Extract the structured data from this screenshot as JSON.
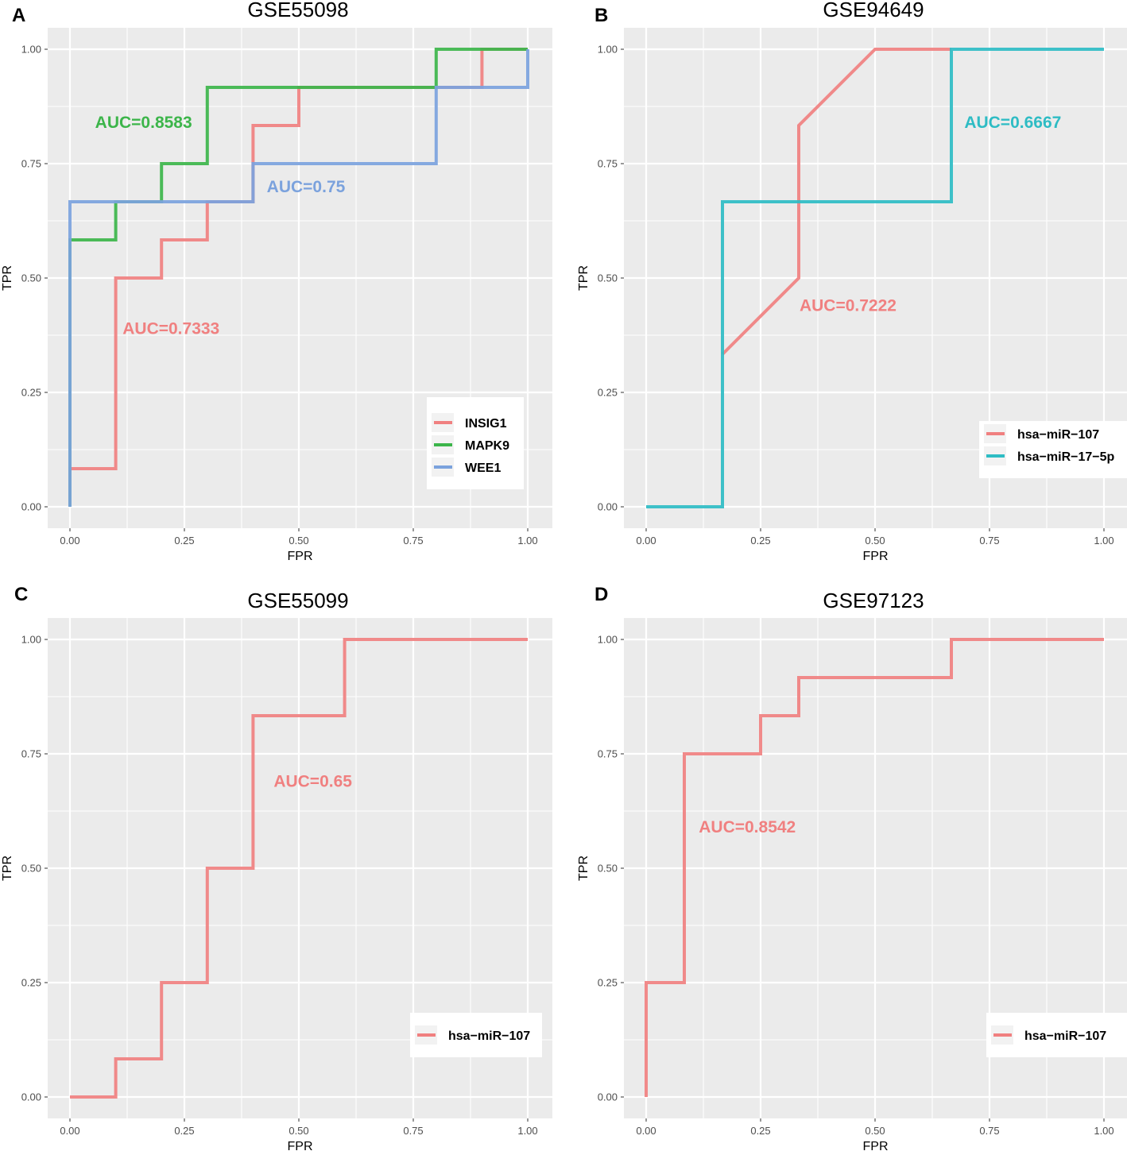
{
  "chart_data": [
    {
      "panel": "A",
      "type": "line",
      "title": "GSE55098",
      "xlabel": "FPR",
      "ylabel": "TPR",
      "xlim": [
        0,
        1
      ],
      "ylim": [
        0,
        1
      ],
      "xticks": [
        "0.00",
        "0.25",
        "0.50",
        "0.75",
        "1.00"
      ],
      "yticks": [
        "0.00",
        "0.25",
        "0.50",
        "0.75",
        "1.00"
      ],
      "legend": "bottom-right",
      "series": [
        {
          "name": "INSIG1",
          "color": "#f08080",
          "auc_label": "AUC=0.7333",
          "auc_pos": [
            0.115,
            0.39
          ],
          "points": [
            [
              0,
              0
            ],
            [
              0,
              0.0833
            ],
            [
              0.1,
              0.0833
            ],
            [
              0.1,
              0.5
            ],
            [
              0.2,
              0.5
            ],
            [
              0.2,
              0.5833
            ],
            [
              0.3,
              0.5833
            ],
            [
              0.3,
              0.6667
            ],
            [
              0.4,
              0.6667
            ],
            [
              0.4,
              0.8333
            ],
            [
              0.5,
              0.8333
            ],
            [
              0.5,
              0.9167
            ],
            [
              0.9,
              0.9167
            ],
            [
              0.9,
              1
            ],
            [
              1,
              1
            ]
          ]
        },
        {
          "name": "MAPK9",
          "color": "#3cb54a",
          "auc_label": "AUC=0.8583",
          "auc_pos": [
            0.055,
            0.84
          ],
          "points": [
            [
              0,
              0
            ],
            [
              0,
              0.5833
            ],
            [
              0.1,
              0.5833
            ],
            [
              0.1,
              0.6667
            ],
            [
              0.2,
              0.6667
            ],
            [
              0.2,
              0.75
            ],
            [
              0.3,
              0.75
            ],
            [
              0.3,
              0.9167
            ],
            [
              0.8,
              0.9167
            ],
            [
              0.8,
              1
            ],
            [
              1,
              1
            ]
          ]
        },
        {
          "name": "WEE1",
          "color": "#7ba2dd",
          "auc_label": "AUC=0.75",
          "auc_pos": [
            0.43,
            0.7
          ],
          "points": [
            [
              0,
              0
            ],
            [
              0,
              0.6667
            ],
            [
              0.4,
              0.6667
            ],
            [
              0.4,
              0.75
            ],
            [
              0.8,
              0.75
            ],
            [
              0.8,
              0.9167
            ],
            [
              1,
              0.9167
            ],
            [
              1,
              1
            ]
          ]
        }
      ]
    },
    {
      "panel": "B",
      "type": "line",
      "title": "GSE94649",
      "xlabel": "FPR",
      "ylabel": "TPR",
      "xlim": [
        0,
        1
      ],
      "ylim": [
        0,
        1
      ],
      "xticks": [
        "0.00",
        "0.25",
        "0.50",
        "0.75",
        "1.00"
      ],
      "yticks": [
        "0.00",
        "0.25",
        "0.50",
        "0.75",
        "1.00"
      ],
      "legend": "bottom-right",
      "series": [
        {
          "name": "hsa−miR−107",
          "color": "#f08080",
          "auc_label": "AUC=0.7222",
          "auc_pos": [
            0.335,
            0.44
          ],
          "points": [
            [
              0.1667,
              0.3333
            ],
            [
              0.3333,
              0.5
            ],
            [
              0.3333,
              0.8333
            ],
            [
              0.5,
              1
            ],
            [
              0.6667,
              1
            ]
          ]
        },
        {
          "name": "hsa−miR−17−5p",
          "color": "#2ebcc4",
          "auc_label": "AUC=0.6667",
          "auc_pos": [
            0.695,
            0.84
          ],
          "points": [
            [
              0,
              0
            ],
            [
              0.1667,
              0
            ],
            [
              0.1667,
              0.6667
            ],
            [
              0.6667,
              0.6667
            ],
            [
              0.6667,
              1
            ],
            [
              1,
              1
            ]
          ]
        }
      ]
    },
    {
      "panel": "C",
      "type": "line",
      "title": "GSE55099",
      "xlabel": "FPR",
      "ylabel": "TPR",
      "xlim": [
        0,
        1
      ],
      "ylim": [
        0,
        1
      ],
      "xticks": [
        "0.00",
        "0.25",
        "0.50",
        "0.75",
        "1.00"
      ],
      "yticks": [
        "0.00",
        "0.25",
        "0.50",
        "0.75",
        "1.00"
      ],
      "legend": "bottom-right",
      "series": [
        {
          "name": "hsa−miR−107",
          "color": "#f08080",
          "auc_label": "AUC=0.65",
          "auc_pos": [
            0.445,
            0.69
          ],
          "points": [
            [
              0,
              0
            ],
            [
              0.1,
              0
            ],
            [
              0.1,
              0.0833
            ],
            [
              0.2,
              0.0833
            ],
            [
              0.2,
              0.25
            ],
            [
              0.3,
              0.25
            ],
            [
              0.3,
              0.5
            ],
            [
              0.4,
              0.5
            ],
            [
              0.4,
              0.8333
            ],
            [
              0.6,
              0.8333
            ],
            [
              0.6,
              1
            ],
            [
              1,
              1
            ]
          ]
        }
      ]
    },
    {
      "panel": "D",
      "type": "line",
      "title": "GSE97123",
      "xlabel": "FPR",
      "ylabel": "TPR",
      "xlim": [
        0,
        1
      ],
      "ylim": [
        0,
        1
      ],
      "xticks": [
        "0.00",
        "0.25",
        "0.50",
        "0.75",
        "1.00"
      ],
      "yticks": [
        "0.00",
        "0.25",
        "0.50",
        "0.75",
        "1.00"
      ],
      "legend": "bottom-right",
      "series": [
        {
          "name": "hsa−miR−107",
          "color": "#f08080",
          "auc_label": "AUC=0.8542",
          "auc_pos": [
            0.115,
            0.59
          ],
          "points": [
            [
              0,
              0
            ],
            [
              0,
              0.25
            ],
            [
              0.0833,
              0.25
            ],
            [
              0.0833,
              0.75
            ],
            [
              0.25,
              0.75
            ],
            [
              0.25,
              0.8333
            ],
            [
              0.3333,
              0.8333
            ],
            [
              0.3333,
              0.9167
            ],
            [
              0.6667,
              0.9167
            ],
            [
              0.6667,
              1
            ],
            [
              1,
              1
            ]
          ]
        }
      ]
    }
  ]
}
